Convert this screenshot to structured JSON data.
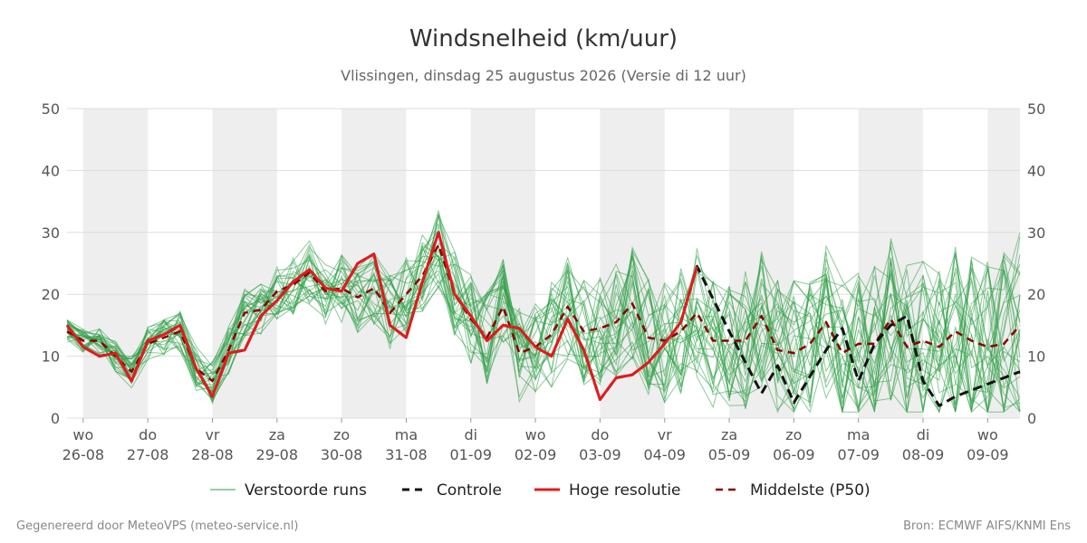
{
  "title": "Windsnelheid (km/uur)",
  "subtitle": "Vlissingen, dinsdag 25 augustus 2026 (Versie di 12 uur)",
  "credit_left": "Gegenereerd door MeteoVPS (meteo-service.nl)",
  "credit_right": "Bron: ECMWF AIFS/KNMI Ens",
  "colors": {
    "ensemble": "#2e9e46",
    "control": "#111111",
    "high_res": "#e31a1c",
    "median": "#8b0000",
    "band": "#eeeeee",
    "grid": "#dddddd"
  },
  "chart_data": {
    "type": "line",
    "ylim": [
      0,
      50
    ],
    "yticks": [
      0,
      10,
      20,
      30,
      40,
      50
    ],
    "xlim": [
      -0.25,
      14.5
    ],
    "days": [
      {
        "weekday": "wo",
        "date": "26-08"
      },
      {
        "weekday": "do",
        "date": "27-08"
      },
      {
        "weekday": "vr",
        "date": "28-08"
      },
      {
        "weekday": "za",
        "date": "29-08"
      },
      {
        "weekday": "zo",
        "date": "30-08"
      },
      {
        "weekday": "ma",
        "date": "31-08"
      },
      {
        "weekday": "di",
        "date": "01-09"
      },
      {
        "weekday": "wo",
        "date": "02-09"
      },
      {
        "weekday": "do",
        "date": "03-09"
      },
      {
        "weekday": "vr",
        "date": "04-09"
      },
      {
        "weekday": "za",
        "date": "05-09"
      },
      {
        "weekday": "zo",
        "date": "06-09"
      },
      {
        "weekday": "ma",
        "date": "07-09"
      },
      {
        "weekday": "di",
        "date": "08-09"
      },
      {
        "weekday": "wo",
        "date": "09-09"
      }
    ],
    "legend": [
      {
        "name": "Verstoorde runs",
        "style": "thin-green"
      },
      {
        "name": "Controle",
        "style": "dashed-black"
      },
      {
        "name": "Hoge resolutie",
        "style": "solid-red"
      },
      {
        "name": "Middelste (P50)",
        "style": "dashed-darkred"
      }
    ],
    "series": [
      {
        "name": "Controle",
        "x": [
          -0.25,
          0,
          0.25,
          0.5,
          0.75,
          1,
          1.25,
          1.5,
          1.75,
          2,
          2.25,
          2.5,
          2.75,
          3,
          3.25,
          3.5,
          3.75,
          4,
          4.25,
          4.5,
          4.75,
          5,
          5.25,
          5.5,
          5.75,
          6,
          6.25,
          6.5,
          6.75,
          7,
          7.25,
          7.5,
          7.75,
          8,
          8.25,
          8.5,
          8.75,
          9,
          9.25,
          9.5,
          10,
          10.5,
          10.75,
          11,
          11.5,
          11.75,
          12,
          12.25,
          12.5,
          12.75,
          13,
          13.25,
          13.5,
          13.75,
          14,
          14.5
        ],
        "y": [
          15,
          11.5,
          10,
          10.5,
          6,
          12.5,
          13.5,
          15,
          8,
          3.5,
          10.5,
          11,
          16.5,
          19,
          22,
          24,
          21,
          20.5,
          25,
          26.5,
          15,
          13,
          22,
          30,
          20,
          16.5,
          12.5,
          15,
          14.5,
          11.5,
          10,
          16,
          11,
          3,
          6.5,
          7,
          9,
          12,
          15.5,
          24.5,
          14,
          4,
          8.5,
          2.5,
          11,
          14.5,
          6,
          12,
          15,
          16.5,
          6,
          2,
          3.5,
          4.5,
          5.5,
          7.5
        ]
      },
      {
        "name": "Hoge resolutie",
        "x": [
          -0.25,
          0,
          0.25,
          0.5,
          0.75,
          1,
          1.25,
          1.5,
          1.75,
          2,
          2.25,
          2.5,
          2.75,
          3,
          3.25,
          3.5,
          3.75,
          4,
          4.25,
          4.5,
          4.75,
          5,
          5.25,
          5.5,
          5.75,
          6,
          6.25,
          6.5,
          6.75,
          7,
          7.25,
          7.5,
          7.75,
          8,
          8.25,
          8.5,
          8.75,
          9,
          9.25,
          9.5
        ],
        "y": [
          15,
          11.5,
          10,
          10.5,
          6,
          12.5,
          13.5,
          15,
          8,
          3.5,
          10.5,
          11,
          16.5,
          19,
          22,
          24,
          21,
          20.5,
          25,
          26.5,
          15,
          13,
          22,
          30,
          20,
          16.5,
          12.5,
          15,
          14.5,
          11.5,
          10,
          16,
          11,
          3,
          6.5,
          7,
          9,
          12,
          15.5,
          24.5
        ]
      },
      {
        "name": "Middelste (P50)",
        "x": [
          -0.25,
          0,
          0.25,
          0.5,
          0.75,
          1,
          1.25,
          1.5,
          1.75,
          2,
          2.25,
          2.5,
          2.75,
          3,
          3.25,
          3.5,
          3.75,
          4,
          4.25,
          4.5,
          4.75,
          5,
          5.25,
          5.5,
          5.75,
          6,
          6.25,
          6.5,
          6.75,
          7,
          7.25,
          7.5,
          7.75,
          8,
          8.25,
          8.5,
          8.75,
          9,
          9.25,
          9.5,
          9.75,
          10,
          10.25,
          10.5,
          10.75,
          11,
          11.25,
          11.5,
          11.75,
          12,
          12.25,
          12.5,
          12.75,
          13,
          13.25,
          13.5,
          13.75,
          14,
          14.25,
          14.5
        ],
        "y": [
          14,
          12.5,
          12.5,
          10,
          7.5,
          12,
          13,
          14,
          8,
          6,
          11,
          17,
          17.5,
          20.5,
          21.5,
          23.5,
          20.5,
          21,
          19.5,
          21,
          17,
          20,
          23,
          28,
          20,
          16,
          13,
          18,
          10.5,
          11.5,
          13.5,
          18,
          14,
          14.5,
          15.5,
          18.5,
          13,
          12.5,
          14,
          17,
          12.5,
          12.5,
          12.5,
          16.5,
          11,
          10.5,
          12,
          15.5,
          10.5,
          12,
          12,
          16,
          11.5,
          12.5,
          11.5,
          14,
          12.5,
          11.5,
          12,
          15
        ]
      }
    ],
    "ensemble_runs": 30
  }
}
